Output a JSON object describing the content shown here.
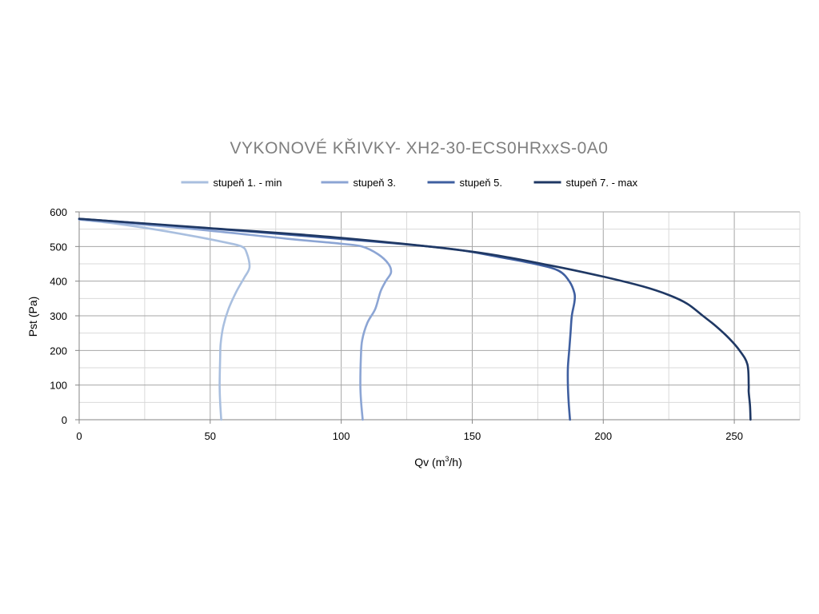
{
  "chart_data": {
    "type": "line",
    "title": "VYKONOVÉ KŘIVKY- XH2-30-ECS0HRxxS-0A0",
    "xlabel_main": "Qv (m",
    "xlabel_sup": "3",
    "xlabel_end": "/h)",
    "ylabel": "Pst (Pa)",
    "xlim": [
      0,
      275
    ],
    "ylim": [
      0,
      600
    ],
    "x_major_ticks": [
      0,
      50,
      100,
      150,
      200,
      250
    ],
    "x_minor_step": 25,
    "y_major_ticks": [
      0,
      100,
      200,
      300,
      400,
      500,
      600
    ],
    "y_minor_step": 50,
    "grid": true,
    "legend_position": "top",
    "series": [
      {
        "name": "stupeň 1. - min",
        "color": "#a9bfdf",
        "points": [
          [
            0,
            578
          ],
          [
            15,
            565
          ],
          [
            30,
            548
          ],
          [
            45,
            528
          ],
          [
            55,
            513
          ],
          [
            62,
            500
          ],
          [
            64,
            480
          ],
          [
            65,
            440
          ],
          [
            63,
            410
          ],
          [
            60,
            370
          ],
          [
            57,
            320
          ],
          [
            55,
            270
          ],
          [
            54,
            220
          ],
          [
            53.8,
            180
          ],
          [
            53.6,
            100
          ],
          [
            53.8,
            50
          ],
          [
            54.2,
            0
          ]
        ]
      },
      {
        "name": "stupeň 3.",
        "color": "#8ca5d4",
        "points": [
          [
            0,
            578
          ],
          [
            40,
            553
          ],
          [
            80,
            522
          ],
          [
            100,
            508
          ],
          [
            108,
            500
          ],
          [
            114,
            478
          ],
          [
            118,
            450
          ],
          [
            119,
            425
          ],
          [
            117,
            400
          ],
          [
            115,
            370
          ],
          [
            113,
            320
          ],
          [
            110,
            280
          ],
          [
            108,
            230
          ],
          [
            107.5,
            180
          ],
          [
            107.3,
            100
          ],
          [
            107.6,
            50
          ],
          [
            108.2,
            0
          ]
        ]
      },
      {
        "name": "stupeň 5.",
        "color": "#3f5fa0",
        "points": [
          [
            0,
            580
          ],
          [
            50,
            552
          ],
          [
            100,
            522
          ],
          [
            140,
            495
          ],
          [
            160,
            470
          ],
          [
            175,
            448
          ],
          [
            183,
            430
          ],
          [
            187,
            400
          ],
          [
            189,
            365
          ],
          [
            189,
            340
          ],
          [
            188,
            300
          ],
          [
            187.5,
            250
          ],
          [
            187,
            200
          ],
          [
            186.5,
            150
          ],
          [
            186.5,
            100
          ],
          [
            186.8,
            50
          ],
          [
            187.3,
            0
          ]
        ]
      },
      {
        "name": "stupeň 7. - max",
        "color": "#1f3864",
        "points": [
          [
            0,
            580
          ],
          [
            50,
            553
          ],
          [
            100,
            525
          ],
          [
            150,
            485
          ],
          [
            180,
            445
          ],
          [
            200,
            413
          ],
          [
            215,
            385
          ],
          [
            225,
            360
          ],
          [
            232,
            335
          ],
          [
            238,
            300
          ],
          [
            243,
            270
          ],
          [
            248,
            235
          ],
          [
            252,
            200
          ],
          [
            255,
            160
          ],
          [
            255.5,
            100
          ],
          [
            255.5,
            80
          ],
          [
            256,
            40
          ],
          [
            256.2,
            0
          ]
        ]
      }
    ]
  }
}
